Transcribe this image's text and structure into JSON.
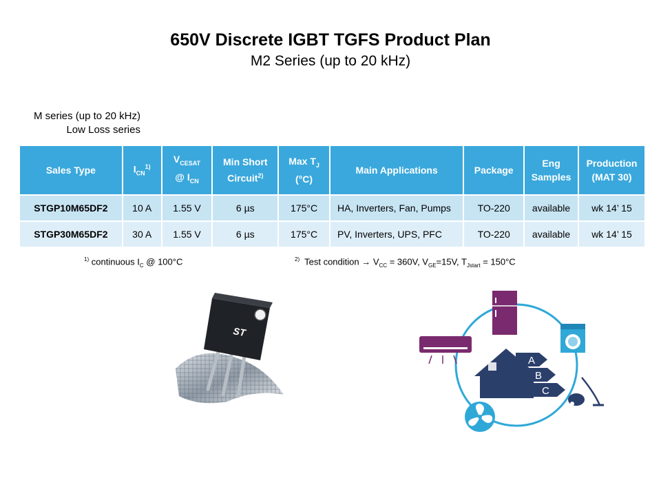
{
  "header": {
    "title": "650V Discrete IGBT TGFS Product Plan",
    "subtitle": "M2 Series (up to 20 kHz)"
  },
  "series_label": {
    "line1": "M series (up to 20 kHz)",
    "line2": "Low Loss series"
  },
  "table": {
    "headers": {
      "sales_type": "Sales Type",
      "icn_main": "I",
      "icn_sub": "CN",
      "icn_sup": "1)",
      "vce_main": "V",
      "vce_sub": "CESAT",
      "vce_at": "@ I",
      "vce_at_sub": "CN",
      "short_line1": "Min Short",
      "short_line2": "Circuit",
      "short_sup": "2)",
      "tj_main": "Max T",
      "tj_sub": "J",
      "tj_unit": "(°C)",
      "apps": "Main Applications",
      "package": "Package",
      "eng_line1": "Eng",
      "eng_line2": "Samples",
      "prod_line1": "Production",
      "prod_line2": "(MAT 30)"
    },
    "rows": [
      {
        "sales_type": "STGP10M65DF2",
        "icn": "10 A",
        "vcesat": "1.55 V",
        "short_circuit": "6 µs",
        "max_tj": "175°C",
        "apps": "HA, Inverters, Fan, Pumps",
        "package": "TO-220",
        "eng": "available",
        "production": "wk 14’ 15"
      },
      {
        "sales_type": "STGP30M65DF2",
        "icn": "30 A",
        "vcesat": "1.55 V",
        "short_circuit": "6 µs",
        "max_tj": "175°C",
        "apps": "PV, Inverters, UPS, PFC",
        "package": "TO-220",
        "eng": "available",
        "production": "wk 14’ 15"
      }
    ]
  },
  "footnotes": {
    "f1_mark": "1)",
    "f1_text": "continuous I",
    "f1_sub": "C",
    "f1_tail": "@ 100°C",
    "f2_mark": "2)",
    "f2_text": "Test condition → V",
    "f2_sub1": "CC",
    "f2_mid1": "= 360V, V",
    "f2_sub2": "GE",
    "f2_mid2": "=15V, T",
    "f2_sub3": "Jstart",
    "f2_tail": "= 150°C"
  },
  "images": {
    "chip_logo_text": "ST",
    "energy_labels": [
      "A",
      "B",
      "C"
    ]
  },
  "colors": {
    "header_blue": "#3aa8dc",
    "row1": "#c7e4f3",
    "row2": "#deeef8",
    "navy": "#2b3f6b",
    "purple": "#7a2a6e",
    "cyan": "#2fa8d8"
  }
}
